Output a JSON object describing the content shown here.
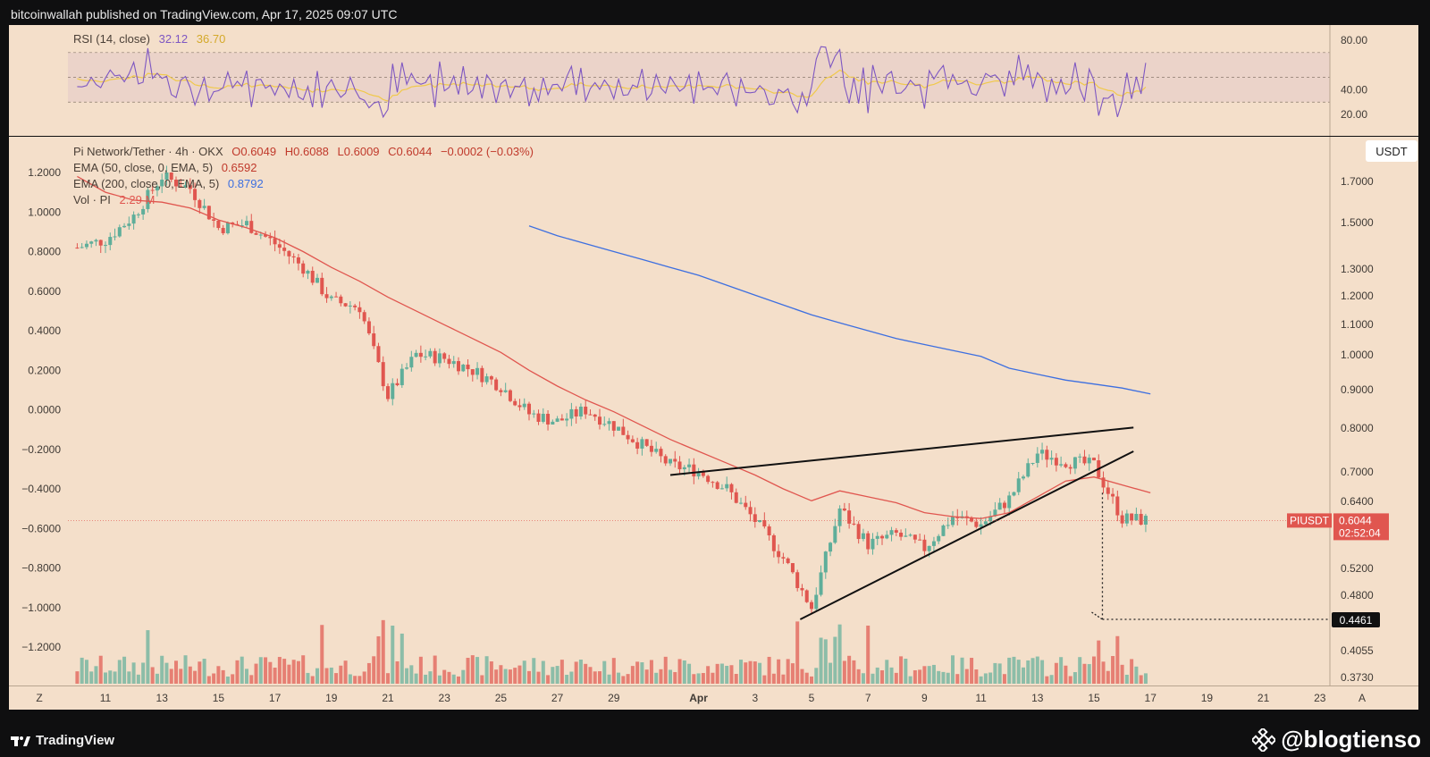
{
  "header": {
    "published": "bitcoinwallah published on TradingView.com, Apr 17, 2025 09:07 UTC"
  },
  "rsi": {
    "title": "RSI (14, close)",
    "value": "32.12",
    "ma_value": "36.70",
    "ticks": [
      "80.00",
      "40.00",
      "20.00"
    ],
    "levels": [
      70,
      50,
      30
    ],
    "colors": {
      "rsi": "#7e57c2",
      "ma": "#f0c94b",
      "band": "#e8cfc8"
    }
  },
  "legend": {
    "symbol_line": "Pi Network/Tether · 4h · OKX",
    "open": "O0.6049",
    "high": "H0.6088",
    "low": "L0.6009",
    "close": "C0.6044",
    "change": "−0.0002 (−0.03%)",
    "ema50_label": "EMA (50, close, 0, EMA, 5)",
    "ema50_value": "0.6592",
    "ema200_label": "EMA (200, close, 0, EMA, 5)",
    "ema200_value": "0.8792",
    "vol_label": "Vol · PI",
    "vol_value": "2.29 M"
  },
  "axes": {
    "currency": "USDT",
    "left_ticks": [
      "1.2000",
      "1.0000",
      "0.8000",
      "0.6000",
      "0.4000",
      "0.2000",
      "0.0000",
      "−0.2000",
      "−0.4000",
      "−0.6000",
      "−0.8000",
      "−1.0000",
      "−1.2000"
    ],
    "right_ticks": [
      "1.7000",
      "1.5000",
      "1.3000",
      "1.2000",
      "1.1000",
      "1.0000",
      "0.9000",
      "0.8000",
      "0.7000",
      "0.6400",
      "0.5200",
      "0.4800",
      "0.4055",
      "0.3730"
    ],
    "x_ticks": [
      "Z",
      "11",
      "13",
      "15",
      "17",
      "19",
      "21",
      "23",
      "25",
      "27",
      "29",
      "Apr",
      "3",
      "5",
      "7",
      "9",
      "11",
      "13",
      "15",
      "17",
      "19",
      "21",
      "23",
      "A"
    ]
  },
  "price_tags": {
    "symbol": "PIUSDT",
    "price": "0.6044",
    "countdown": "02:52:04",
    "target": "0.4461"
  },
  "colors": {
    "up": "#5fae9a",
    "down": "#e0564f",
    "ema50": "#e0564f",
    "ema200": "#3d6fe0",
    "bg": "#f4dfca"
  },
  "footer": {
    "brand": "TradingView",
    "watermark": "@blogtienso"
  },
  "chart_data": {
    "type": "line",
    "title": "Pi Network/Tether · 4h · OKX",
    "x": [
      "Mar 10",
      "Mar 11",
      "Mar 12",
      "Mar 13",
      "Mar 14",
      "Mar 15",
      "Mar 16",
      "Mar 17",
      "Mar 18",
      "Mar 19",
      "Mar 20",
      "Mar 21",
      "Mar 22",
      "Mar 23",
      "Mar 24",
      "Mar 25",
      "Mar 26",
      "Mar 27",
      "Mar 28",
      "Mar 29",
      "Mar 30",
      "Mar 31",
      "Apr 1",
      "Apr 2",
      "Apr 3",
      "Apr 4",
      "Apr 5",
      "Apr 6",
      "Apr 7",
      "Apr 8",
      "Apr 9",
      "Apr 10",
      "Apr 11",
      "Apr 12",
      "Apr 13",
      "Apr 14",
      "Apr 15",
      "Apr 16",
      "Apr 17"
    ],
    "series": [
      {
        "name": "Pi Network/Tether",
        "values": [
          0.82,
          0.86,
          0.98,
          1.18,
          1.12,
          0.92,
          0.94,
          0.84,
          0.72,
          0.55,
          0.52,
          0.07,
          0.28,
          0.26,
          0.2,
          0.12,
          -0.02,
          -0.06,
          0.0,
          -0.08,
          -0.18,
          -0.28,
          -0.31,
          -0.4,
          -0.56,
          -0.75,
          -1.0,
          -0.5,
          -0.68,
          -0.63,
          -0.7,
          -0.54,
          -0.58,
          -0.45,
          -0.22,
          -0.26,
          -0.28,
          -0.55,
          -0.56
        ]
      },
      {
        "name": "EMA (50, close, 0, EMA, 5)",
        "values": [
          1.18,
          1.1,
          1.06,
          1.05,
          1.02,
          0.96,
          0.92,
          0.87,
          0.8,
          0.72,
          0.65,
          0.57,
          0.5,
          0.43,
          0.36,
          0.29,
          0.2,
          0.12,
          0.05,
          -0.01,
          -0.08,
          -0.15,
          -0.21,
          -0.27,
          -0.33,
          -0.4,
          -0.46,
          -0.41,
          -0.44,
          -0.47,
          -0.52,
          -0.54,
          -0.55,
          -0.52,
          -0.44,
          -0.36,
          -0.34,
          -0.38,
          -0.42
        ]
      },
      {
        "name": "EMA (200, close, 0, EMA, 5)",
        "values": [
          null,
          null,
          null,
          null,
          null,
          null,
          null,
          null,
          null,
          null,
          null,
          null,
          null,
          null,
          null,
          null,
          0.93,
          0.88,
          0.84,
          0.8,
          0.76,
          0.72,
          0.68,
          0.63,
          0.58,
          0.53,
          0.48,
          0.44,
          0.4,
          0.36,
          0.33,
          0.3,
          0.27,
          0.21,
          0.18,
          0.15,
          0.13,
          0.11,
          0.08
        ]
      }
    ],
    "annotations": [
      "rising wedge",
      "breakdown target 0.4461"
    ],
    "grid": false,
    "legend": "top-left"
  }
}
